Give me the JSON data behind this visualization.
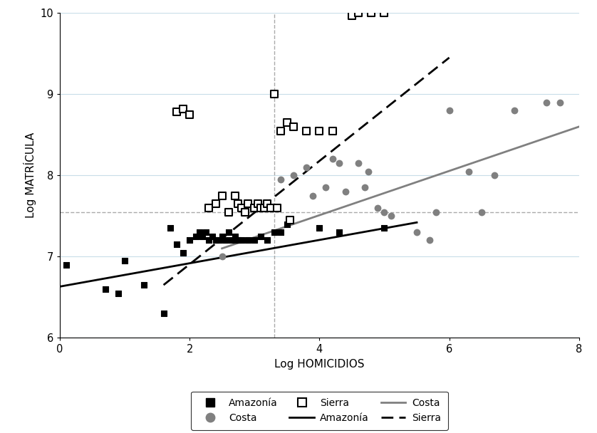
{
  "xlabel": "Log HOMICIDIOS",
  "ylabel": "Log MATRÍCULA",
  "xlim": [
    0,
    8
  ],
  "ylim": [
    6,
    10
  ],
  "xticks": [
    0,
    2,
    4,
    6,
    8
  ],
  "yticks": [
    6,
    7,
    8,
    9,
    10
  ],
  "vline_x": 3.3,
  "hline_y": 7.55,
  "amazonia_x": [
    0.1,
    0.7,
    0.9,
    1.0,
    1.3,
    1.6,
    1.7,
    1.8,
    1.9,
    2.0,
    2.1,
    2.15,
    2.2,
    2.25,
    2.3,
    2.35,
    2.4,
    2.45,
    2.5,
    2.55,
    2.6,
    2.65,
    2.7,
    2.75,
    2.8,
    2.9,
    3.0,
    3.1,
    3.2,
    3.3,
    3.4,
    3.5,
    4.0,
    4.3,
    5.0
  ],
  "amazonia_y": [
    6.9,
    6.6,
    6.55,
    6.95,
    6.65,
    6.3,
    7.35,
    7.15,
    7.05,
    7.2,
    7.25,
    7.3,
    7.25,
    7.3,
    7.2,
    7.25,
    7.2,
    7.2,
    7.25,
    7.2,
    7.3,
    7.2,
    7.25,
    7.2,
    7.2,
    7.2,
    7.2,
    7.25,
    7.2,
    7.3,
    7.3,
    7.4,
    7.35,
    7.3,
    7.35
  ],
  "costa_x": [
    2.5,
    3.4,
    3.6,
    3.8,
    3.9,
    4.1,
    4.2,
    4.3,
    4.4,
    4.6,
    4.7,
    4.75,
    4.9,
    5.0,
    5.1,
    5.5,
    5.7,
    5.8,
    6.0,
    6.3,
    6.5,
    6.7,
    7.0,
    7.5,
    7.7
  ],
  "costa_y": [
    7.0,
    7.95,
    8.0,
    8.1,
    7.75,
    7.85,
    8.2,
    8.15,
    7.8,
    8.15,
    7.85,
    8.05,
    7.6,
    7.55,
    7.5,
    7.3,
    7.2,
    7.55,
    8.8,
    8.05,
    7.55,
    8.0,
    8.8,
    8.9,
    8.9
  ],
  "sierra_x": [
    1.8,
    1.9,
    2.0,
    2.3,
    2.4,
    2.5,
    2.6,
    2.7,
    2.75,
    2.8,
    2.85,
    2.9,
    3.0,
    3.05,
    3.1,
    3.15,
    3.2,
    3.25,
    3.3,
    3.35,
    3.4,
    3.5,
    3.55,
    3.6,
    3.8,
    4.0,
    4.2,
    4.5,
    4.6,
    4.8,
    5.0
  ],
  "sierra_y": [
    8.78,
    8.82,
    8.75,
    7.6,
    7.65,
    7.75,
    7.55,
    7.75,
    7.65,
    7.6,
    7.55,
    7.65,
    7.6,
    7.65,
    7.6,
    7.6,
    7.65,
    7.6,
    9.0,
    7.6,
    8.55,
    8.65,
    7.45,
    8.6,
    8.55,
    8.55,
    8.55,
    9.97,
    10.0,
    10.0,
    10.0
  ],
  "amazonia_line": [
    0.0,
    5.5,
    6.63,
    7.42
  ],
  "costa_line": [
    2.5,
    8.0,
    7.1,
    8.6
  ],
  "sierra_line": [
    1.6,
    6.0,
    6.65,
    9.45
  ],
  "amazonia_color": "#000000",
  "costa_color": "#808080",
  "sierra_edgecolor": "#000000",
  "amazonia_line_color": "#000000",
  "costa_line_color": "#808080",
  "sierra_line_color": "#000000",
  "ref_line_color": "#aaaaaa",
  "background_color": "#ffffff",
  "grid_color": "#c8dde8"
}
